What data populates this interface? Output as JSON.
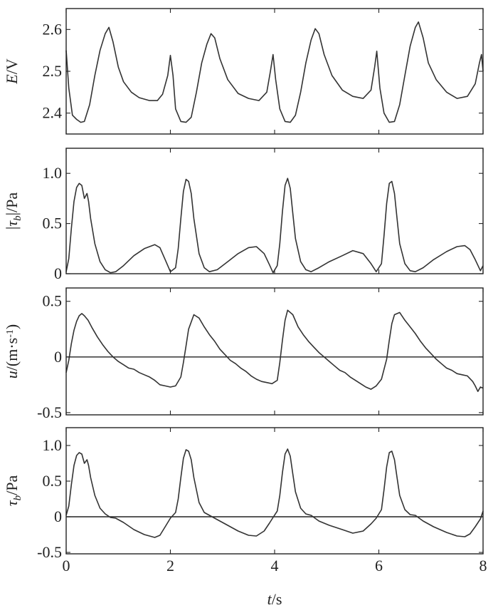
{
  "chart_data": [
    {
      "type": "line",
      "ylabel_italic": "E",
      "ylabel_unit": "/V",
      "ylim": [
        2.35,
        2.65
      ],
      "yticks": [
        2.4,
        2.5,
        2.6
      ],
      "ytick_labels": [
        "2.4",
        "2.5",
        "2.6"
      ],
      "xlim": [
        0,
        8
      ],
      "zero_line": false,
      "series": [
        {
          "x": [
            0,
            0.05,
            0.12,
            0.2,
            0.28,
            0.35,
            0.45,
            0.55,
            0.65,
            0.75,
            0.82,
            0.9,
            1.0,
            1.1,
            1.25,
            1.4,
            1.6,
            1.75,
            1.85,
            1.95,
            2.0,
            2.05,
            2.1,
            2.2,
            2.3,
            2.4,
            2.5,
            2.6,
            2.7,
            2.78,
            2.85,
            2.95,
            3.1,
            3.3,
            3.5,
            3.7,
            3.85,
            3.92,
            3.97,
            4.02,
            4.1,
            4.2,
            4.3,
            4.4,
            4.5,
            4.6,
            4.7,
            4.78,
            4.85,
            4.95,
            5.1,
            5.3,
            5.5,
            5.7,
            5.85,
            5.92,
            5.96,
            6.02,
            6.1,
            6.2,
            6.3,
            6.4,
            6.5,
            6.6,
            6.7,
            6.76,
            6.85,
            6.95,
            7.1,
            7.3,
            7.5,
            7.7,
            7.85,
            7.93,
            7.97,
            8.0
          ],
          "y": [
            2.55,
            2.46,
            2.395,
            2.385,
            2.378,
            2.38,
            2.42,
            2.49,
            2.55,
            2.59,
            2.605,
            2.57,
            2.51,
            2.475,
            2.45,
            2.437,
            2.43,
            2.43,
            2.445,
            2.49,
            2.538,
            2.49,
            2.41,
            2.38,
            2.378,
            2.39,
            2.45,
            2.52,
            2.565,
            2.59,
            2.58,
            2.53,
            2.48,
            2.447,
            2.435,
            2.43,
            2.45,
            2.5,
            2.54,
            2.48,
            2.41,
            2.38,
            2.378,
            2.395,
            2.45,
            2.52,
            2.575,
            2.602,
            2.59,
            2.54,
            2.49,
            2.455,
            2.44,
            2.435,
            2.455,
            2.51,
            2.548,
            2.46,
            2.4,
            2.378,
            2.38,
            2.42,
            2.49,
            2.56,
            2.605,
            2.618,
            2.58,
            2.52,
            2.48,
            2.45,
            2.435,
            2.44,
            2.47,
            2.52,
            2.54,
            2.5
          ]
        }
      ]
    },
    {
      "type": "line",
      "ylabel_prefix": "|",
      "ylabel_italic": "τ",
      "ylabel_sub": "b",
      "ylabel_unit": "|/Pa",
      "ylim": [
        0,
        1.25
      ],
      "yticks": [
        0,
        0.5,
        1.0
      ],
      "ytick_labels": [
        "0",
        "0.5",
        "1.0"
      ],
      "xlim": [
        0,
        8
      ],
      "zero_line": false,
      "series": [
        {
          "x": [
            0,
            0.05,
            0.1,
            0.15,
            0.2,
            0.25,
            0.3,
            0.35,
            0.4,
            0.43,
            0.47,
            0.55,
            0.65,
            0.75,
            0.85,
            0.95,
            1.1,
            1.3,
            1.5,
            1.7,
            1.8,
            1.9,
            2.0,
            2.1,
            2.15,
            2.2,
            2.25,
            2.3,
            2.35,
            2.4,
            2.45,
            2.55,
            2.65,
            2.75,
            2.9,
            3.1,
            3.3,
            3.5,
            3.65,
            3.8,
            3.9,
            3.97,
            4.05,
            4.1,
            4.15,
            4.2,
            4.25,
            4.3,
            4.35,
            4.4,
            4.5,
            4.6,
            4.7,
            4.85,
            5.05,
            5.3,
            5.5,
            5.7,
            5.85,
            5.95,
            6.05,
            6.1,
            6.15,
            6.2,
            6.25,
            6.3,
            6.35,
            6.4,
            6.5,
            6.6,
            6.7,
            6.85,
            7.05,
            7.3,
            7.5,
            7.65,
            7.75,
            7.85,
            7.95,
            8.0
          ],
          "y": [
            0.02,
            0.15,
            0.45,
            0.72,
            0.86,
            0.9,
            0.88,
            0.75,
            0.8,
            0.72,
            0.55,
            0.3,
            0.12,
            0.04,
            0.01,
            0.02,
            0.08,
            0.18,
            0.25,
            0.29,
            0.26,
            0.14,
            0.02,
            0.06,
            0.25,
            0.55,
            0.82,
            0.94,
            0.92,
            0.8,
            0.55,
            0.2,
            0.06,
            0.02,
            0.04,
            0.12,
            0.2,
            0.26,
            0.27,
            0.2,
            0.09,
            0.01,
            0.08,
            0.3,
            0.62,
            0.88,
            0.95,
            0.85,
            0.6,
            0.35,
            0.12,
            0.04,
            0.02,
            0.06,
            0.12,
            0.18,
            0.23,
            0.2,
            0.1,
            0.02,
            0.1,
            0.38,
            0.7,
            0.9,
            0.92,
            0.8,
            0.55,
            0.3,
            0.1,
            0.03,
            0.02,
            0.06,
            0.14,
            0.22,
            0.27,
            0.28,
            0.24,
            0.14,
            0.03,
            0.08
          ]
        }
      ]
    },
    {
      "type": "line",
      "ylabel_italic": "u",
      "ylabel_unit": "/(m·s",
      "ylabel_sup": "-1",
      "ylabel_close": ")",
      "ylim": [
        -0.52,
        0.62
      ],
      "yticks": [
        -0.5,
        0,
        0.5
      ],
      "ytick_labels": [
        "-0.5",
        "0",
        "0.5"
      ],
      "xlim": [
        0,
        8
      ],
      "zero_line": true,
      "series": [
        {
          "x": [
            0,
            0.05,
            0.1,
            0.15,
            0.2,
            0.25,
            0.3,
            0.35,
            0.42,
            0.5,
            0.6,
            0.7,
            0.8,
            0.9,
            1.0,
            1.1,
            1.2,
            1.3,
            1.4,
            1.5,
            1.6,
            1.7,
            1.8,
            1.9,
            2.0,
            2.1,
            2.2,
            2.25,
            2.3,
            2.35,
            2.45,
            2.55,
            2.65,
            2.75,
            2.85,
            2.95,
            3.05,
            3.15,
            3.25,
            3.35,
            3.45,
            3.55,
            3.65,
            3.75,
            3.85,
            3.95,
            4.05,
            4.1,
            4.15,
            4.2,
            4.25,
            4.35,
            4.45,
            4.55,
            4.65,
            4.75,
            4.85,
            4.95,
            5.05,
            5.15,
            5.25,
            5.35,
            5.45,
            5.55,
            5.65,
            5.75,
            5.85,
            5.95,
            6.05,
            6.15,
            6.2,
            6.25,
            6.3,
            6.4,
            6.5,
            6.6,
            6.7,
            6.8,
            6.9,
            7.0,
            7.1,
            7.2,
            7.3,
            7.4,
            7.5,
            7.6,
            7.7,
            7.8,
            7.85,
            7.9,
            7.95,
            8.0
          ],
          "y": [
            -0.14,
            -0.03,
            0.12,
            0.24,
            0.32,
            0.37,
            0.39,
            0.37,
            0.33,
            0.26,
            0.18,
            0.11,
            0.05,
            0.0,
            -0.04,
            -0.07,
            -0.1,
            -0.11,
            -0.14,
            -0.16,
            -0.18,
            -0.21,
            -0.25,
            -0.26,
            -0.27,
            -0.26,
            -0.18,
            -0.05,
            0.1,
            0.25,
            0.38,
            0.35,
            0.27,
            0.2,
            0.14,
            0.07,
            0.02,
            -0.03,
            -0.06,
            -0.1,
            -0.13,
            -0.17,
            -0.2,
            -0.22,
            -0.23,
            -0.24,
            -0.21,
            -0.05,
            0.15,
            0.33,
            0.42,
            0.38,
            0.27,
            0.2,
            0.14,
            0.09,
            0.04,
            0.0,
            -0.04,
            -0.08,
            -0.12,
            -0.14,
            -0.18,
            -0.21,
            -0.24,
            -0.27,
            -0.29,
            -0.26,
            -0.2,
            -0.02,
            0.15,
            0.3,
            0.38,
            0.4,
            0.33,
            0.27,
            0.21,
            0.14,
            0.08,
            0.03,
            -0.02,
            -0.06,
            -0.1,
            -0.12,
            -0.15,
            -0.16,
            -0.17,
            -0.22,
            -0.26,
            -0.31,
            -0.27,
            -0.28
          ]
        }
      ]
    },
    {
      "type": "line",
      "ylabel_italic": "τ",
      "ylabel_sub": "b",
      "ylabel_unit": "/Pa",
      "ylim": [
        -0.52,
        1.25
      ],
      "yticks": [
        -0.5,
        0,
        0.5,
        1.0
      ],
      "ytick_labels": [
        "-0.5",
        "0",
        "0.5",
        "1.0"
      ],
      "xlim": [
        0,
        8
      ],
      "xticks": [
        0,
        2,
        4,
        6,
        8
      ],
      "xtick_labels": [
        "0",
        "2",
        "4",
        "6",
        "8"
      ],
      "xlabel_italic": "t",
      "xlabel_unit": "/s",
      "zero_line": true,
      "series": [
        {
          "x": [
            0,
            0.05,
            0.1,
            0.15,
            0.2,
            0.25,
            0.3,
            0.35,
            0.4,
            0.43,
            0.47,
            0.55,
            0.65,
            0.75,
            0.85,
            0.95,
            1.1,
            1.3,
            1.5,
            1.7,
            1.8,
            1.9,
            2.0,
            2.1,
            2.15,
            2.2,
            2.25,
            2.3,
            2.35,
            2.4,
            2.45,
            2.55,
            2.65,
            2.75,
            2.9,
            3.1,
            3.3,
            3.5,
            3.65,
            3.8,
            3.9,
            3.97,
            4.05,
            4.1,
            4.15,
            4.2,
            4.25,
            4.3,
            4.35,
            4.4,
            4.5,
            4.6,
            4.7,
            4.85,
            5.05,
            5.3,
            5.5,
            5.7,
            5.85,
            5.95,
            6.05,
            6.1,
            6.15,
            6.2,
            6.25,
            6.3,
            6.35,
            6.4,
            6.5,
            6.6,
            6.7,
            6.85,
            7.05,
            7.3,
            7.5,
            7.65,
            7.75,
            7.85,
            7.95,
            8.0
          ],
          "y": [
            0.02,
            0.15,
            0.45,
            0.72,
            0.86,
            0.9,
            0.88,
            0.75,
            0.8,
            0.72,
            0.55,
            0.3,
            0.12,
            0.04,
            -0.01,
            -0.02,
            -0.08,
            -0.18,
            -0.25,
            -0.29,
            -0.26,
            -0.14,
            -0.02,
            0.06,
            0.25,
            0.55,
            0.82,
            0.94,
            0.92,
            0.8,
            0.55,
            0.2,
            0.06,
            0.02,
            -0.04,
            -0.12,
            -0.2,
            -0.26,
            -0.27,
            -0.2,
            -0.09,
            -0.01,
            0.08,
            0.3,
            0.62,
            0.88,
            0.95,
            0.85,
            0.6,
            0.35,
            0.12,
            0.04,
            0.02,
            -0.06,
            -0.12,
            -0.18,
            -0.23,
            -0.2,
            -0.1,
            -0.02,
            0.1,
            0.38,
            0.7,
            0.9,
            0.92,
            0.8,
            0.55,
            0.3,
            0.1,
            0.03,
            0.02,
            -0.06,
            -0.14,
            -0.22,
            -0.27,
            -0.28,
            -0.24,
            -0.14,
            -0.03,
            0.08
          ]
        }
      ]
    }
  ]
}
